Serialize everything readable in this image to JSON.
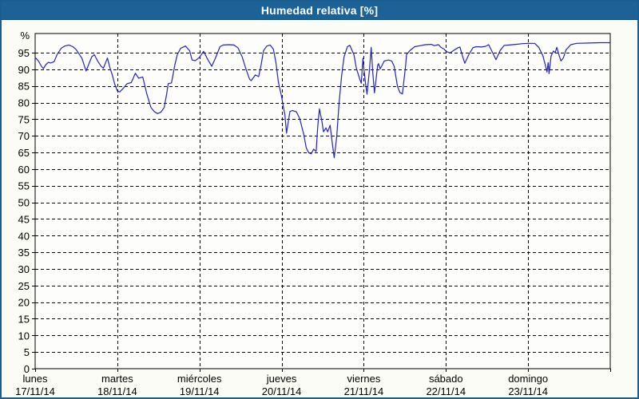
{
  "window": {
    "title": "Humedad relativa [%]"
  },
  "colors": {
    "title_bar_bg": "#1d6296",
    "title_text": "#ffffff",
    "frame_border": "#1b5d8e",
    "canvas_bg": "#fafcf5",
    "plot_bg": "#fdfefb",
    "grid": "#000000",
    "axis_text": "#000000",
    "line": "#2424b8"
  },
  "chart_data": {
    "type": "line",
    "title": "Humedad relativa [%]",
    "ylabel": "%",
    "y_unit_label": "%",
    "ylim": [
      0,
      100.8
    ],
    "grid": "dashed",
    "legend": "none",
    "y_ticks": [
      0,
      5,
      10,
      15,
      20,
      25,
      30,
      35,
      40,
      45,
      50,
      55,
      60,
      65,
      70,
      75,
      80,
      85,
      90,
      95
    ],
    "x_day_labels": [
      {
        "name": "lunes",
        "date": "17/11/14"
      },
      {
        "name": "martes",
        "date": "18/11/14"
      },
      {
        "name": "miércoles",
        "date": "19/11/14"
      },
      {
        "name": "jueves",
        "date": "20/11/14"
      },
      {
        "name": "viernes",
        "date": "21/11/14"
      },
      {
        "name": "sábado",
        "date": "22/11/14"
      },
      {
        "name": "domingo",
        "date": "23/11/14"
      }
    ],
    "x_range_days": [
      0,
      7
    ],
    "series": [
      {
        "name": "Humedad relativa",
        "color": "#2424b8",
        "points": [
          [
            0.0,
            93.6
          ],
          [
            0.04,
            92.5
          ],
          [
            0.08,
            90.8
          ],
          [
            0.1,
            90.2
          ],
          [
            0.13,
            91.4
          ],
          [
            0.16,
            92.1
          ],
          [
            0.19,
            91.9
          ],
          [
            0.23,
            92.3
          ],
          [
            0.27,
            94.6
          ],
          [
            0.32,
            96.4
          ],
          [
            0.36,
            97.0
          ],
          [
            0.41,
            97.3
          ],
          [
            0.46,
            96.8
          ],
          [
            0.5,
            95.9
          ],
          [
            0.53,
            94.8
          ],
          [
            0.57,
            93.3
          ],
          [
            0.6,
            91.0
          ],
          [
            0.62,
            89.5
          ],
          [
            0.66,
            92.0
          ],
          [
            0.69,
            93.8
          ],
          [
            0.72,
            94.4
          ],
          [
            0.76,
            92.5
          ],
          [
            0.8,
            91.0
          ],
          [
            0.83,
            90.3
          ],
          [
            0.86,
            92.2
          ],
          [
            0.88,
            93.4
          ],
          [
            0.91,
            90.5
          ],
          [
            0.94,
            88.2
          ],
          [
            0.97,
            85.4
          ],
          [
            1.0,
            83.5
          ],
          [
            1.03,
            83.2
          ],
          [
            1.08,
            84.5
          ],
          [
            1.12,
            85.7
          ],
          [
            1.17,
            86.0
          ],
          [
            1.22,
            88.8
          ],
          [
            1.26,
            87.3
          ],
          [
            1.31,
            87.7
          ],
          [
            1.36,
            82.5
          ],
          [
            1.41,
            78.5
          ],
          [
            1.45,
            77.3
          ],
          [
            1.49,
            76.7
          ],
          [
            1.53,
            77.1
          ],
          [
            1.57,
            78.5
          ],
          [
            1.6,
            82.5
          ],
          [
            1.62,
            85.7
          ],
          [
            1.66,
            85.9
          ],
          [
            1.7,
            91.3
          ],
          [
            1.73,
            94.4
          ],
          [
            1.77,
            96.3
          ],
          [
            1.83,
            97.0
          ],
          [
            1.88,
            95.6
          ],
          [
            1.91,
            92.8
          ],
          [
            1.95,
            92.6
          ],
          [
            2.0,
            93.6
          ],
          [
            2.05,
            95.4
          ],
          [
            2.1,
            93.0
          ],
          [
            2.15,
            90.9
          ],
          [
            2.2,
            93.7
          ],
          [
            2.25,
            96.8
          ],
          [
            2.29,
            97.3
          ],
          [
            2.36,
            97.4
          ],
          [
            2.42,
            97.3
          ],
          [
            2.47,
            96.4
          ],
          [
            2.52,
            93.7
          ],
          [
            2.57,
            89.8
          ],
          [
            2.61,
            87.0
          ],
          [
            2.63,
            86.6
          ],
          [
            2.68,
            88.3
          ],
          [
            2.72,
            87.8
          ],
          [
            2.75,
            91.3
          ],
          [
            2.78,
            95.6
          ],
          [
            2.82,
            97.0
          ],
          [
            2.86,
            97.3
          ],
          [
            2.9,
            96.0
          ],
          [
            2.93,
            92.1
          ],
          [
            2.96,
            86.2
          ],
          [
            3.0,
            81.7
          ],
          [
            3.02,
            78.9
          ],
          [
            3.04,
            76.3
          ],
          [
            3.06,
            70.8
          ],
          [
            3.1,
            77.3
          ],
          [
            3.13,
            77.6
          ],
          [
            3.18,
            77.2
          ],
          [
            3.22,
            75.2
          ],
          [
            3.27,
            70.4
          ],
          [
            3.3,
            66.4
          ],
          [
            3.33,
            64.9
          ],
          [
            3.36,
            64.6
          ],
          [
            3.39,
            66.0
          ],
          [
            3.42,
            65.3
          ],
          [
            3.44,
            72.8
          ],
          [
            3.46,
            78.1
          ],
          [
            3.49,
            74.4
          ],
          [
            3.51,
            71.2
          ],
          [
            3.54,
            72.4
          ],
          [
            3.56,
            71.2
          ],
          [
            3.59,
            73.2
          ],
          [
            3.62,
            67.2
          ],
          [
            3.64,
            63.4
          ],
          [
            3.67,
            69.6
          ],
          [
            3.7,
            80.1
          ],
          [
            3.73,
            88.1
          ],
          [
            3.76,
            93.7
          ],
          [
            3.8,
            96.8
          ],
          [
            3.83,
            97.2
          ],
          [
            3.88,
            94.4
          ],
          [
            3.91,
            90.3
          ],
          [
            3.95,
            87.1
          ],
          [
            3.97,
            85.8
          ],
          [
            3.99,
            93.3
          ],
          [
            4.0,
            90.5
          ],
          [
            4.02,
            86.0
          ],
          [
            4.04,
            82.5
          ],
          [
            4.07,
            90.0
          ],
          [
            4.09,
            96.6
          ],
          [
            4.11,
            89.0
          ],
          [
            4.13,
            82.9
          ],
          [
            4.17,
            91.3
          ],
          [
            4.18,
            91.7
          ],
          [
            4.2,
            90.1
          ],
          [
            4.25,
            92.5
          ],
          [
            4.3,
            92.8
          ],
          [
            4.34,
            92.5
          ],
          [
            4.37,
            90.9
          ],
          [
            4.41,
            84.9
          ],
          [
            4.44,
            83.0
          ],
          [
            4.47,
            82.6
          ],
          [
            4.51,
            91.3
          ],
          [
            4.52,
            94.4
          ],
          [
            4.56,
            95.6
          ],
          [
            4.62,
            96.8
          ],
          [
            4.69,
            97.1
          ],
          [
            4.75,
            97.4
          ],
          [
            4.82,
            97.5
          ],
          [
            4.86,
            97.1
          ],
          [
            4.91,
            97.4
          ],
          [
            4.94,
            96.6
          ],
          [
            4.98,
            96.0
          ],
          [
            5.0,
            95.4
          ],
          [
            5.05,
            94.9
          ],
          [
            5.1,
            95.8
          ],
          [
            5.15,
            96.5
          ],
          [
            5.17,
            96.7
          ],
          [
            5.2,
            94.1
          ],
          [
            5.23,
            91.8
          ],
          [
            5.28,
            94.5
          ],
          [
            5.33,
            96.5
          ],
          [
            5.37,
            96.8
          ],
          [
            5.43,
            96.7
          ],
          [
            5.48,
            96.9
          ],
          [
            5.52,
            97.4
          ],
          [
            5.57,
            94.9
          ],
          [
            5.61,
            92.9
          ],
          [
            5.66,
            95.7
          ],
          [
            5.71,
            97.2
          ],
          [
            5.77,
            97.3
          ],
          [
            5.85,
            97.5
          ],
          [
            5.93,
            97.7
          ],
          [
            6.0,
            97.8
          ],
          [
            6.08,
            97.8
          ],
          [
            6.13,
            96.6
          ],
          [
            6.18,
            94.1
          ],
          [
            6.22,
            90.2
          ],
          [
            6.23,
            89.2
          ],
          [
            6.245,
            92.0
          ],
          [
            6.255,
            88.7
          ],
          [
            6.28,
            94.0
          ],
          [
            6.31,
            95.5
          ],
          [
            6.33,
            95.0
          ],
          [
            6.35,
            96.6
          ],
          [
            6.38,
            94.0
          ],
          [
            6.4,
            92.5
          ],
          [
            6.43,
            93.5
          ],
          [
            6.46,
            95.8
          ],
          [
            6.52,
            97.4
          ],
          [
            6.59,
            97.8
          ],
          [
            6.74,
            97.9
          ],
          [
            6.88,
            98.0
          ],
          [
            7.0,
            98.0
          ]
        ]
      }
    ]
  }
}
